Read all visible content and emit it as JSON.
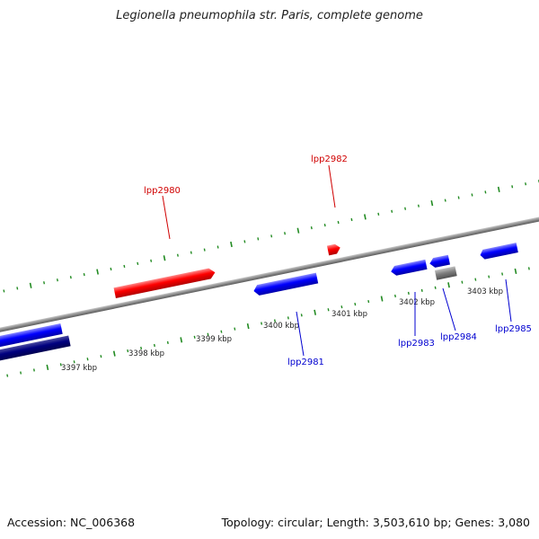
{
  "title": "Legionella pneumophila str. Paris, complete genome",
  "footer": {
    "accession": "Accession: NC_006368",
    "summary": "Topology: circular; Length: 3,503,610 bp; Genes: 3,080"
  },
  "scale_labels": [
    "3397 kbp",
    "3398 kbp",
    "3399 kbp",
    "3400 kbp",
    "3401 kbp",
    "3402 kbp",
    "3403 kbp"
  ],
  "genes": [
    {
      "name": "lpp2980",
      "strand": "forward",
      "color": "#ff0000"
    },
    {
      "name": "lpp2981",
      "strand": "reverse",
      "color": "#0000ff"
    },
    {
      "name": "lpp2982",
      "strand": "forward",
      "color": "#ff0000"
    },
    {
      "name": "lpp2983",
      "strand": "reverse",
      "color": "#0000ff"
    },
    {
      "name": "lpp2984",
      "strand": "reverse",
      "color": "#0000ff"
    },
    {
      "name": "lpp2985",
      "strand": "reverse",
      "color": "#0000ff"
    }
  ],
  "colors": {
    "forward_gene": "#ff0000",
    "reverse_gene": "#0000ff",
    "dark_gene": "#000080",
    "other_feature": "#808080",
    "ticks": "#228b22",
    "backbone": "#888888"
  }
}
